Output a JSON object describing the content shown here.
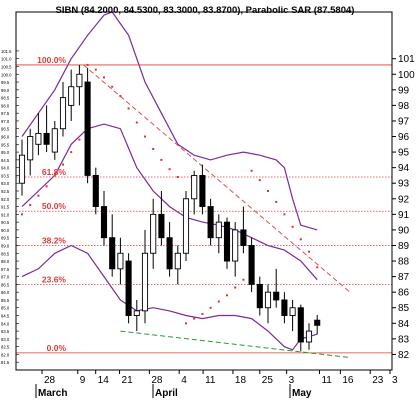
{
  "chart_data": {
    "type": "candlestick",
    "title": "SIBN (84.2000, 84.5300, 83.3000, 83.8700), Parabolic SAR (87.5804)",
    "ylim": [
      81,
      104
    ],
    "right_ticks": [
      "101",
      "100",
      "99",
      "98",
      "97",
      "96",
      "95",
      "94",
      "93",
      "92",
      "91",
      "90",
      "89",
      "88",
      "87",
      "86",
      "85",
      "84",
      "83",
      "82"
    ],
    "left_ticks": [
      "101.5",
      "101.0",
      "100.5",
      "100.0",
      "99.5",
      "99.0",
      "98.5",
      "98.0",
      "97.5",
      "97.0",
      "96.5",
      "96.0",
      "95.5",
      "95.0",
      "94.5",
      "94.0",
      "93.5",
      "93.0",
      "92.5",
      "92.0",
      "91.5",
      "91.0",
      "90.5",
      "90.0",
      "89.5",
      "89.0",
      "88.5",
      "88.0",
      "87.5",
      "87.0",
      "86.5",
      "86.0",
      "85.5",
      "85.0",
      "84.5",
      "84.0",
      "83.5",
      "83.0",
      "82.5",
      "82.0",
      "81.5"
    ],
    "x_ticks": [
      "28",
      "9",
      "14",
      "21",
      "28",
      "4",
      "11",
      "18",
      "25",
      "3",
      "11",
      "16",
      "23",
      "3"
    ],
    "month_labels": [
      "March",
      "April",
      "May"
    ],
    "fib_levels": [
      {
        "label": "100.0%",
        "value": 100.6
      },
      {
        "label": "61.8%",
        "value": 93.4
      },
      {
        "label": "50.0%",
        "value": 91.2
      },
      {
        "label": "38.2%",
        "value": 89.0
      },
      {
        "label": "23.6%",
        "value": 86.5
      },
      {
        "label": "0.0%",
        "value": 82.1
      }
    ],
    "candles": [
      {
        "o": 93.0,
        "h": 95.8,
        "l": 92.2,
        "c": 94.8
      },
      {
        "o": 94.5,
        "h": 96.5,
        "l": 93.5,
        "c": 96.0
      },
      {
        "o": 95.5,
        "h": 97.5,
        "l": 94.8,
        "c": 96.2
      },
      {
        "o": 96.2,
        "h": 98.0,
        "l": 95.0,
        "c": 95.5
      },
      {
        "o": 95.0,
        "h": 97.0,
        "l": 94.5,
        "c": 96.5
      },
      {
        "o": 96.5,
        "h": 99.5,
        "l": 96.0,
        "c": 98.5
      },
      {
        "o": 98.0,
        "h": 100.3,
        "l": 97.0,
        "c": 99.2
      },
      {
        "o": 99.2,
        "h": 100.6,
        "l": 98.0,
        "c": 100.0
      },
      {
        "o": 99.5,
        "h": 100.4,
        "l": 93.0,
        "c": 93.5
      },
      {
        "o": 93.5,
        "h": 94.0,
        "l": 91.0,
        "c": 91.5
      },
      {
        "o": 91.5,
        "h": 92.5,
        "l": 89.0,
        "c": 89.5
      },
      {
        "o": 89.5,
        "h": 91.0,
        "l": 87.0,
        "c": 87.5
      },
      {
        "o": 87.5,
        "h": 89.5,
        "l": 86.5,
        "c": 88.5
      },
      {
        "o": 88.0,
        "h": 88.5,
        "l": 84.0,
        "c": 84.5
      },
      {
        "o": 84.5,
        "h": 85.5,
        "l": 83.5,
        "c": 84.8
      },
      {
        "o": 84.8,
        "h": 90.0,
        "l": 84.0,
        "c": 88.5
      },
      {
        "o": 88.5,
        "h": 92.0,
        "l": 87.5,
        "c": 91.0
      },
      {
        "o": 91.0,
        "h": 92.5,
        "l": 89.0,
        "c": 89.5
      },
      {
        "o": 89.5,
        "h": 90.5,
        "l": 87.0,
        "c": 87.5
      },
      {
        "o": 87.5,
        "h": 89.0,
        "l": 86.5,
        "c": 88.5
      },
      {
        "o": 88.5,
        "h": 92.5,
        "l": 88.0,
        "c": 92.0
      },
      {
        "o": 92.0,
        "h": 93.8,
        "l": 91.0,
        "c": 93.5
      },
      {
        "o": 93.5,
        "h": 94.2,
        "l": 91.0,
        "c": 91.5
      },
      {
        "o": 91.5,
        "h": 92.0,
        "l": 89.0,
        "c": 89.5
      },
      {
        "o": 89.5,
        "h": 91.0,
        "l": 88.5,
        "c": 90.5
      },
      {
        "o": 90.5,
        "h": 90.8,
        "l": 87.5,
        "c": 88.0
      },
      {
        "o": 88.0,
        "h": 90.5,
        "l": 87.0,
        "c": 90.0
      },
      {
        "o": 90.0,
        "h": 91.5,
        "l": 88.5,
        "c": 89.0
      },
      {
        "o": 89.0,
        "h": 89.5,
        "l": 86.0,
        "c": 86.5
      },
      {
        "o": 86.5,
        "h": 87.0,
        "l": 84.5,
        "c": 85.0
      },
      {
        "o": 85.0,
        "h": 86.5,
        "l": 84.0,
        "c": 86.0
      },
      {
        "o": 86.0,
        "h": 87.5,
        "l": 85.0,
        "c": 85.5
      },
      {
        "o": 85.5,
        "h": 86.0,
        "l": 84.0,
        "c": 84.5
      },
      {
        "o": 84.5,
        "h": 85.5,
        "l": 83.5,
        "c": 85.0
      },
      {
        "o": 85.0,
        "h": 85.2,
        "l": 82.2,
        "c": 82.8
      },
      {
        "o": 82.8,
        "h": 84.0,
        "l": 82.3,
        "c": 83.5
      },
      {
        "o": 84.2,
        "h": 84.53,
        "l": 83.3,
        "c": 83.87
      }
    ],
    "sar": [
      {
        "i": 0,
        "v": 91.0
      },
      {
        "i": 1,
        "v": 91.6
      },
      {
        "i": 2,
        "v": 92.2
      },
      {
        "i": 3,
        "v": 92.8
      },
      {
        "i": 4,
        "v": 93.5
      },
      {
        "i": 5,
        "v": 94.2
      },
      {
        "i": 6,
        "v": 95.0
      },
      {
        "i": 7,
        "v": 95.8
      },
      {
        "i": 8,
        "v": 100.6
      },
      {
        "i": 9,
        "v": 100.3
      },
      {
        "i": 10,
        "v": 99.8
      },
      {
        "i": 11,
        "v": 99.2
      },
      {
        "i": 12,
        "v": 98.6
      },
      {
        "i": 13,
        "v": 97.8
      },
      {
        "i": 14,
        "v": 96.9
      },
      {
        "i": 15,
        "v": 96.0
      },
      {
        "i": 16,
        "v": 95.2
      },
      {
        "i": 17,
        "v": 94.5
      },
      {
        "i": 18,
        "v": 93.9
      },
      {
        "i": 19,
        "v": 93.4
      },
      {
        "i": 20,
        "v": 84.0
      },
      {
        "i": 21,
        "v": 84.3
      },
      {
        "i": 22,
        "v": 84.6
      },
      {
        "i": 23,
        "v": 85.0
      },
      {
        "i": 24,
        "v": 85.4
      },
      {
        "i": 25,
        "v": 85.8
      },
      {
        "i": 26,
        "v": 86.3
      },
      {
        "i": 27,
        "v": 86.8
      },
      {
        "i": 28,
        "v": 93.8
      },
      {
        "i": 29,
        "v": 93.2
      },
      {
        "i": 30,
        "v": 92.5
      },
      {
        "i": 31,
        "v": 91.8
      },
      {
        "i": 32,
        "v": 91.0
      },
      {
        "i": 33,
        "v": 90.2
      },
      {
        "i": 34,
        "v": 89.4
      },
      {
        "i": 35,
        "v": 88.6
      },
      {
        "i": 36,
        "v": 87.6
      }
    ],
    "bb_upper": [
      [
        0,
        96.0
      ],
      [
        2,
        97.5
      ],
      [
        4,
        99.0
      ],
      [
        6,
        101.0
      ],
      [
        8,
        102.5
      ],
      [
        10,
        103.8
      ],
      [
        11,
        104.0
      ],
      [
        13,
        102.5
      ],
      [
        15,
        99.5
      ],
      [
        17,
        97.5
      ],
      [
        19,
        95.5
      ],
      [
        21,
        94.8
      ],
      [
        23,
        94.5
      ],
      [
        25,
        94.8
      ],
      [
        27,
        95.0
      ],
      [
        29,
        94.8
      ],
      [
        31,
        94.5
      ],
      [
        32,
        94.0
      ],
      [
        33,
        92.0
      ],
      [
        34,
        90.3
      ],
      [
        36,
        90.0
      ]
    ],
    "bb_middle": [
      [
        0,
        91.5
      ],
      [
        2,
        92.5
      ],
      [
        4,
        93.5
      ],
      [
        6,
        95.5
      ],
      [
        8,
        96.5
      ],
      [
        10,
        96.8
      ],
      [
        12,
        96.5
      ],
      [
        14,
        94.0
      ],
      [
        16,
        92.5
      ],
      [
        18,
        91.5
      ],
      [
        20,
        90.8
      ],
      [
        22,
        90.5
      ],
      [
        24,
        90.3
      ],
      [
        26,
        90.0
      ],
      [
        28,
        89.5
      ],
      [
        30,
        89.0
      ],
      [
        32,
        88.7
      ],
      [
        34,
        88.0
      ],
      [
        36,
        86.8
      ]
    ],
    "bb_lower": [
      [
        0,
        87.0
      ],
      [
        2,
        87.5
      ],
      [
        4,
        88.5
      ],
      [
        6,
        89.0
      ],
      [
        8,
        88.5
      ],
      [
        10,
        87.0
      ],
      [
        12,
        85.5
      ],
      [
        14,
        84.8
      ],
      [
        16,
        85.0
      ],
      [
        18,
        84.8
      ],
      [
        20,
        84.5
      ],
      [
        22,
        84.3
      ],
      [
        24,
        84.5
      ],
      [
        26,
        84.5
      ],
      [
        28,
        84.3
      ],
      [
        30,
        83.5
      ],
      [
        32,
        82.5
      ],
      [
        33,
        82.3
      ],
      [
        34,
        83.0
      ],
      [
        36,
        83.3
      ]
    ],
    "trend_down": {
      "i1": 7.5,
      "v1": 100.6,
      "i2": 40,
      "v2": 86.0,
      "color": "#e05050"
    },
    "trend_up": {
      "i1": 12,
      "v1": 83.5,
      "i2": 40,
      "v2": 81.8,
      "color": "#2a9a2a"
    },
    "colors": {
      "fib": "#e03a3a",
      "sar": "#e03030",
      "bands": "#7a2a9a",
      "candle": "#000000",
      "axis": "#000000"
    }
  }
}
